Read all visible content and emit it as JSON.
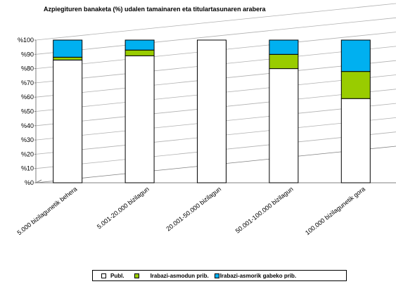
{
  "chart_data": {
    "type": "bar",
    "stacked": true,
    "title": "Azpiegituren banaketa (%) udalen tamainaren eta titulartasunaren arabera",
    "xlabel": "",
    "ylabel": "",
    "ylim": [
      0,
      100
    ],
    "grid": true,
    "legend_position": "bottom",
    "categories": [
      "5.000 bizilagunetik behera",
      "5.001-20.000 bizilagun",
      "20.001-50.000 bizilagun",
      "50.001-100.000 bizilagun",
      "100.000 bizilagunetik gora"
    ],
    "y_ticks": [
      "%0",
      "%10",
      "%20",
      "%30",
      "%40",
      "%50",
      "%60",
      "%70",
      "%80",
      "%90",
      "%100"
    ],
    "series": [
      {
        "name": "Publ.",
        "color": "#ffffff",
        "values": [
          86,
          89,
          100,
          80,
          59
        ]
      },
      {
        "name": "Irabazi-asmodun prib.",
        "color": "#99cc00",
        "values": [
          2,
          4,
          0,
          10,
          19
        ]
      },
      {
        "name": "Irabazi-asmorik gabeko prib.",
        "color": "#00b0f0",
        "values": [
          12,
          7,
          0,
          10,
          22
        ]
      }
    ]
  }
}
